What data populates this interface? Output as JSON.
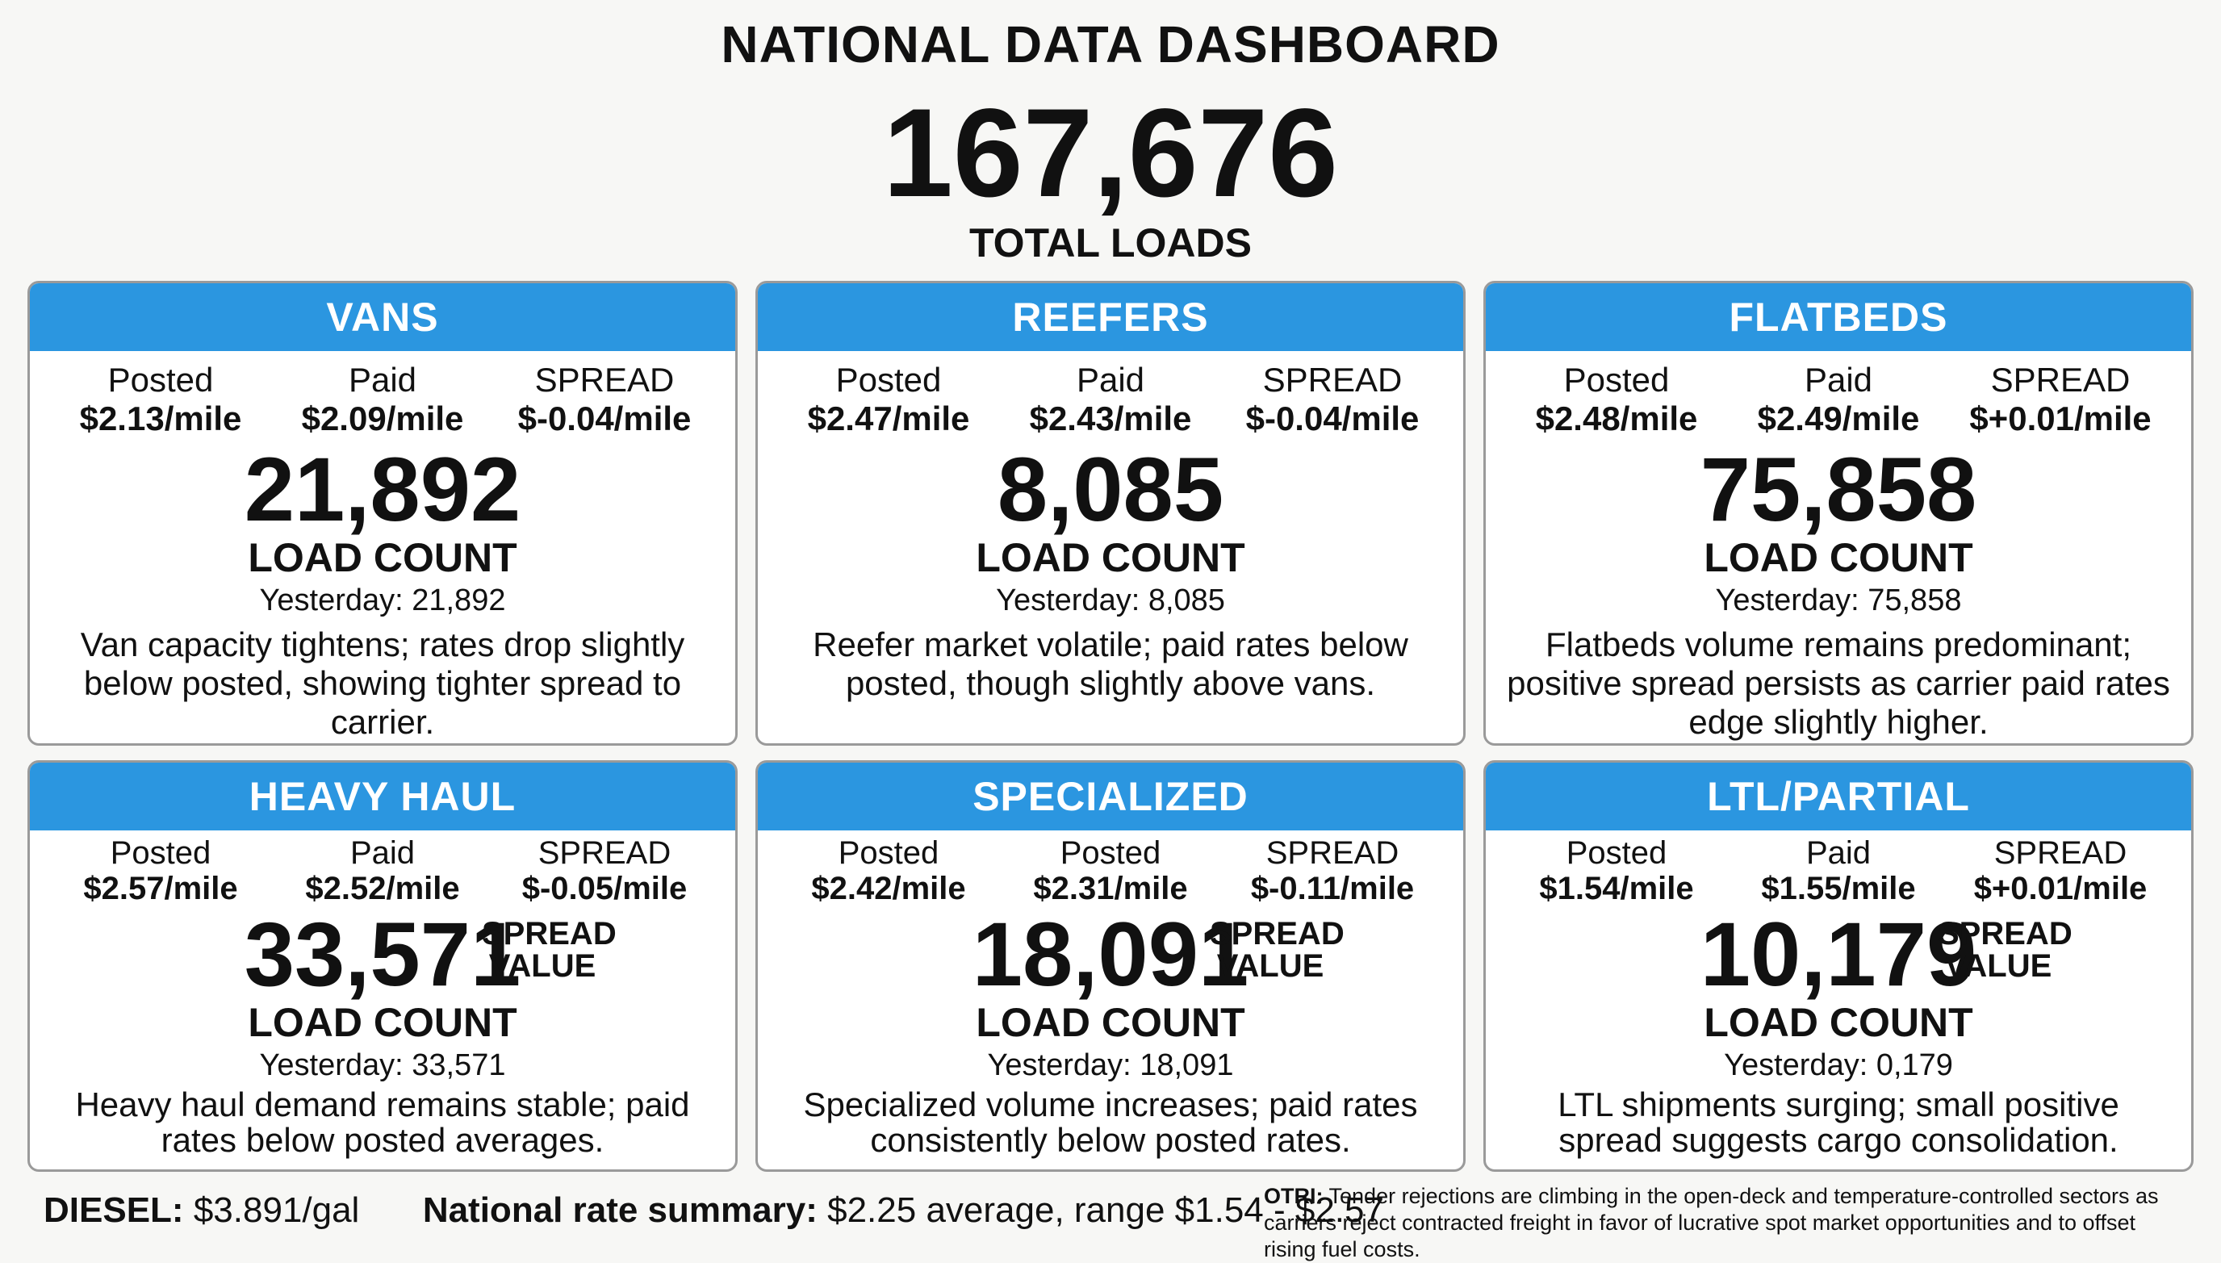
{
  "title": "NATIONAL DATA DASHBOARD",
  "total": {
    "value": "167,676",
    "label": "TOTAL LOADS"
  },
  "cards": [
    {
      "header": "VANS",
      "metrics": [
        {
          "label": "Posted",
          "value": "$2.13/mile"
        },
        {
          "label": "Paid",
          "value": "$2.09/mile"
        },
        {
          "label": "SPREAD",
          "value": "$-0.04/mile"
        }
      ],
      "count": "21,892",
      "count_label": "LOAD COUNT",
      "yesterday": "Yesterday: 21,892",
      "desc": "Van capacity tightens; rates drop slightly below posted, showing tighter spread to carrier."
    },
    {
      "header": "REEFERS",
      "metrics": [
        {
          "label": "Posted",
          "value": "$2.47/mile"
        },
        {
          "label": "Paid",
          "value": "$2.43/mile"
        },
        {
          "label": "SPREAD",
          "value": "$-0.04/mile"
        }
      ],
      "count": "8,085",
      "count_label": "LOAD COUNT",
      "yesterday": "Yesterday: 8,085",
      "desc": "Reefer market volatile; paid rates below posted, though slightly above vans."
    },
    {
      "header": "FLATBEDS",
      "metrics": [
        {
          "label": "Posted",
          "value": "$2.48/mile"
        },
        {
          "label": "Paid",
          "value": "$2.49/mile"
        },
        {
          "label": "SPREAD",
          "value": "$+0.01/mile"
        }
      ],
      "count": "75,858",
      "count_label": "LOAD COUNT",
      "yesterday": "Yesterday: 75,858",
      "desc": "Flatbeds volume remains predominant; positive spread persists as carrier paid rates edge slightly higher."
    },
    {
      "header": "HEAVY HAUL",
      "metrics": [
        {
          "label": "Posted",
          "value": "$2.57/mile"
        },
        {
          "label": "Paid",
          "value": "$2.52/mile"
        },
        {
          "label": "SPREAD",
          "value": "$-0.05/mile"
        }
      ],
      "count": "33,571",
      "spread_value": "SPREAD VALUE",
      "count_label": "LOAD COUNT",
      "yesterday": "Yesterday: 33,571",
      "desc": "Heavy haul demand remains stable; paid rates below posted averages."
    },
    {
      "header": "SPECIALIZED",
      "metrics": [
        {
          "label": "Posted",
          "value": "$2.42/mile"
        },
        {
          "label": "Posted",
          "value": "$2.31/mile"
        },
        {
          "label": "SPREAD",
          "value": "$-0.11/mile"
        }
      ],
      "count": "18,091",
      "spread_value": "SPREAD VALUE",
      "count_label": "LOAD COUNT",
      "yesterday": "Yesterday: 18,091",
      "desc": "Specialized volume increases; paid rates consistently below posted rates."
    },
    {
      "header": "LTL/PARTIAL",
      "metrics": [
        {
          "label": "Posted",
          "value": "$1.54/mile"
        },
        {
          "label": "Paid",
          "value": "$1.55/mile"
        },
        {
          "label": "SPREAD",
          "value": "$+0.01/mile"
        }
      ],
      "count": "10,179",
      "spread_value": "SPREAD VALUE",
      "count_label": "LOAD COUNT",
      "yesterday": "Yesterday: 0,179",
      "desc": "LTL shipments surging; small positive spread suggests cargo consolidation."
    }
  ],
  "footer": {
    "diesel_label": "DIESEL:",
    "diesel_value": "$3.891/gal",
    "summary_label": "National rate summary:",
    "summary_value": "$2.25 average, range $1.54 - $2.57",
    "otri_label": "OTRI:",
    "otri_text": "Tender rejections are climbing in the open-deck and temperature-controlled sectors as carriers reject contracted freight in favor of lucrative spot market opportunities and to offset rising fuel costs."
  }
}
